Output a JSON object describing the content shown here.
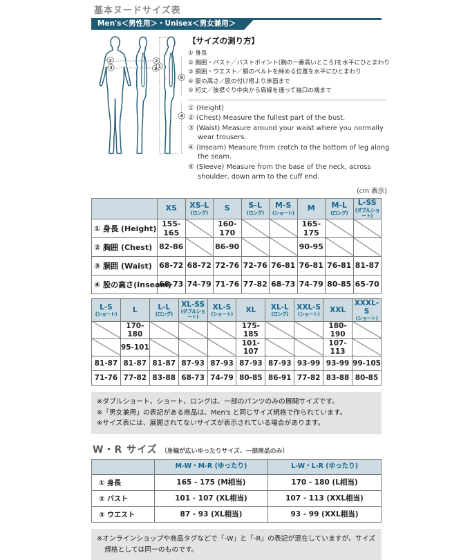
{
  "colors": {
    "accent_teal": "#1d5a73",
    "table_header_bg": "#cddce3",
    "table_header_text": "#17658b",
    "note_bg": "#e3e3e3"
  },
  "header": {
    "title": "基本ヌードサイズ表",
    "band": "Men's＜男性用＞・Unisex＜男女兼用＞"
  },
  "measure": {
    "title": "【サイズの測り方】",
    "jp_items": [
      "① 身長",
      "② 胸囲・バスト／バストポイント(胸の一番高いところ)を水平にひとまわり",
      "③ 胴囲・ウエスト／胴のベルトを締める位置を水平にひとまわり",
      "④ 股の高さ／股の付け根より床面まで",
      "⑤ 裄丈／後襟ぐり中央から肩線を通って袖口の端まで"
    ],
    "en_items": [
      "① (Height)",
      "② (Chest) Measure the fullest part of the bust.",
      "③ (Waist) Measure around your waist where you normally wear trousers.",
      "④ (Inseam) Measure from crotch to the bottom of leg along the seam.",
      "⑤ (Sleeve) Measure from the base of the neck, across shoulder, down arm to the cuff end."
    ],
    "cm_note": "(cm 表示)"
  },
  "diagram": {
    "name": "body-measurement-diagram",
    "labels": [
      "2",
      "3",
      "2",
      "3",
      "1",
      "5",
      "4"
    ]
  },
  "table1": {
    "headers": [
      {
        "label": "",
        "sub": ""
      },
      {
        "label": "XS",
        "sub": ""
      },
      {
        "label": "XS-L",
        "sub": "(ロング)"
      },
      {
        "label": "S",
        "sub": ""
      },
      {
        "label": "S-L",
        "sub": "(ロング)"
      },
      {
        "label": "M-S",
        "sub": "(ショート)"
      },
      {
        "label": "M",
        "sub": ""
      },
      {
        "label": "M-L",
        "sub": "(ロング)"
      },
      {
        "label": "L-SS",
        "sub": "(ダブルショート)"
      }
    ],
    "rows": [
      {
        "label": "① 身長 (Height)",
        "cells": [
          "155-165",
          null,
          "160-170",
          null,
          null,
          "165-175",
          null,
          null
        ]
      },
      {
        "label": "② 胸囲 (Chest)",
        "cells": [
          "82-86",
          null,
          "86-90",
          null,
          null,
          "90-95",
          null,
          null
        ]
      },
      {
        "label": "③ 胴囲 (Waist)",
        "cells": [
          "68-72",
          "68-72",
          "72-76",
          "72-76",
          "76-81",
          "76-81",
          "76-81",
          "81-87"
        ]
      },
      {
        "label": "④ 股の高さ(Inseam)",
        "cells": [
          "68-73",
          "74-79",
          "71-76",
          "77-82",
          "68-73",
          "74-79",
          "80-85",
          "65-70"
        ]
      }
    ]
  },
  "table2": {
    "headers": [
      {
        "label": "L-S",
        "sub": "(ショート)"
      },
      {
        "label": "L",
        "sub": ""
      },
      {
        "label": "L-L",
        "sub": "(ロング)"
      },
      {
        "label": "XL-SS",
        "sub": "(ダブルショート)"
      },
      {
        "label": "XL-S",
        "sub": "(ショート)"
      },
      {
        "label": "XL",
        "sub": ""
      },
      {
        "label": "XL-L",
        "sub": "(ロング)"
      },
      {
        "label": "XXL-S",
        "sub": "(ショート)"
      },
      {
        "label": "XXL",
        "sub": ""
      },
      {
        "label": "XXXL-S",
        "sub": "(ショート)"
      }
    ],
    "rows": [
      {
        "cells": [
          null,
          "170-180",
          null,
          null,
          null,
          "175-185",
          null,
          null,
          "180-190",
          null
        ]
      },
      {
        "cells": [
          null,
          "95-101",
          null,
          null,
          null,
          "101-107",
          null,
          null,
          "107-113",
          null
        ]
      },
      {
        "cells": [
          "81-87",
          "81-87",
          "81-87",
          "87-93",
          "87-93",
          "87-93",
          "87-93",
          "93-99",
          "93-99",
          "99-105"
        ]
      },
      {
        "cells": [
          "71-76",
          "77-82",
          "83-88",
          "68-73",
          "74-79",
          "80-85",
          "86-91",
          "77-82",
          "83-88",
          "80-85"
        ]
      }
    ]
  },
  "notes1": [
    "※ダブルショート、ショート、ロングは、一部のパンツのみの展開サイズです。",
    "※「男女兼用」の表記がある商品は、Men's と同じサイズ規格で作られています。",
    "※サイズ表には、展開されてないサイズが表示されている場合があります。"
  ],
  "wr": {
    "title": "W・R サイズ",
    "subtitle": "（身幅が広いゆったりサイズ、一部商品のみ）"
  },
  "wr_table": {
    "headers": [
      {
        "label": "",
        "sub": ""
      },
      {
        "label": "M-W・M-R (ゆったり)",
        "sub": ""
      },
      {
        "label": "L-W・L-R (ゆったり)",
        "sub": ""
      }
    ],
    "rows": [
      {
        "label": "① 身長",
        "cells": [
          "165 - 175 (M相当)",
          "170 - 180 (L相当)"
        ]
      },
      {
        "label": "② バスト",
        "cells": [
          "101 - 107 (XL相当)",
          "107 - 113 (XXL相当)"
        ]
      },
      {
        "label": "③ ウエスト",
        "cells": [
          "87 - 93 (XL相当)",
          "93 - 99 (XXL相当)"
        ]
      }
    ]
  },
  "notes2": [
    "※オンラインショップや商品タグなどで「-W」と「-R」の表記が混在していますが、サイズ規格としては同一のものです。"
  ]
}
